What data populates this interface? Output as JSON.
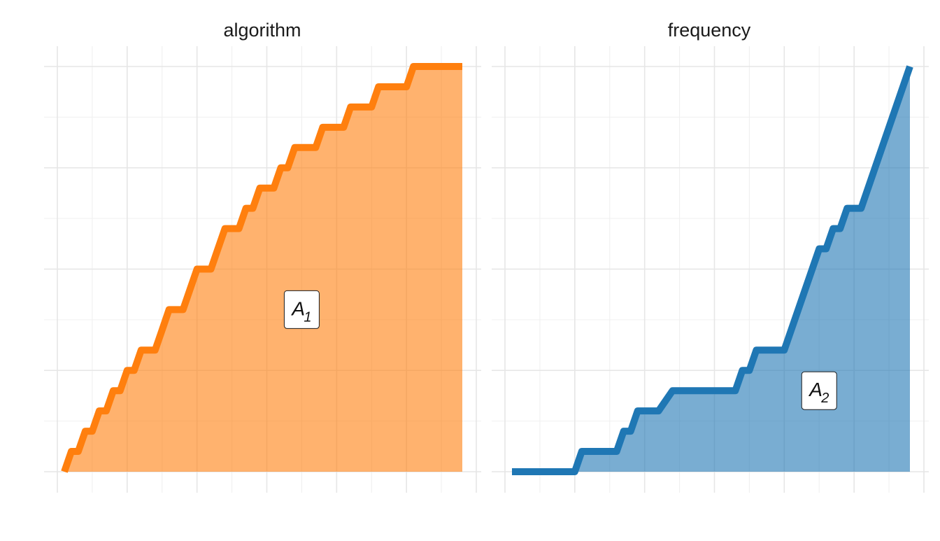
{
  "chart_data": [
    {
      "type": "area",
      "title": "algorithm",
      "colors": {
        "line": "#ff7f0e",
        "fill": "#ff7f0e"
      },
      "fill_opacity": 0.6,
      "grid": true,
      "xlim": [
        0,
        6
      ],
      "ylim": [
        0,
        8
      ],
      "annotation": {
        "main": "A",
        "sub": "1",
        "x": 3.5,
        "y": 3.2
      },
      "series": [
        {
          "x": [
            0.1,
            0.2,
            0.3,
            0.4,
            0.5,
            0.6,
            0.7,
            0.8,
            0.9,
            1.0,
            1.1,
            1.2,
            1.3,
            1.4,
            1.5,
            1.6,
            1.7,
            1.8,
            1.9,
            2.0,
            2.1,
            2.2,
            2.3,
            2.4,
            2.5,
            2.6,
            2.7,
            2.8,
            2.9,
            3.0,
            3.1,
            3.2,
            3.3,
            3.4,
            3.5,
            3.6,
            3.7,
            3.8,
            3.9,
            4.0,
            4.1,
            4.2,
            4.3,
            4.4,
            4.5,
            4.6,
            4.7,
            4.8,
            4.9,
            5.0,
            5.1,
            5.2,
            5.3,
            5.4,
            5.5,
            5.6,
            5.7,
            5.8
          ],
          "y": [
            0.0,
            0.4,
            0.4,
            0.8,
            0.8,
            1.2,
            1.2,
            1.6,
            1.6,
            2.0,
            2.0,
            2.4,
            2.4,
            2.4,
            2.8,
            3.2,
            3.2,
            3.2,
            3.6,
            4.0,
            4.0,
            4.0,
            4.4,
            4.8,
            4.8,
            4.8,
            5.2,
            5.2,
            5.6,
            5.6,
            5.6,
            6.0,
            6.0,
            6.4,
            6.4,
            6.4,
            6.4,
            6.8,
            6.8,
            6.8,
            6.8,
            7.2,
            7.2,
            7.2,
            7.2,
            7.6,
            7.6,
            7.6,
            7.6,
            7.6,
            8.0,
            8.0,
            8.0,
            8.0,
            8.0,
            8.0,
            8.0,
            8.0
          ]
        }
      ]
    },
    {
      "type": "area",
      "title": "frequency",
      "colors": {
        "line": "#1f77b4",
        "fill": "#1f77b4"
      },
      "fill_opacity": 0.6,
      "grid": true,
      "xlim": [
        0,
        6
      ],
      "ylim": [
        0,
        8
      ],
      "annotation": {
        "main": "A",
        "sub": "2",
        "x": 4.5,
        "y": 1.6
      },
      "series": [
        {
          "x": [
            0.1,
            1.0,
            1.1,
            1.6,
            1.7,
            1.8,
            1.9,
            2.2,
            2.4,
            3.3,
            3.4,
            3.5,
            3.6,
            4.0,
            4.5,
            4.6,
            4.7,
            4.8,
            4.9,
            5.1,
            5.8
          ],
          "y": [
            0.0,
            0.0,
            0.4,
            0.4,
            0.8,
            0.8,
            1.2,
            1.2,
            1.6,
            1.6,
            2.0,
            2.0,
            2.4,
            2.4,
            4.4,
            4.4,
            4.8,
            4.8,
            5.2,
            5.2,
            8.0
          ]
        }
      ]
    }
  ]
}
